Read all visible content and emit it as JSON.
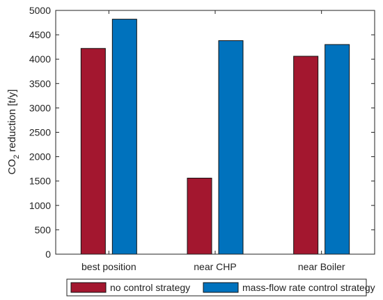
{
  "chart_data": {
    "type": "bar",
    "categories": [
      "best position",
      "near CHP",
      "near Boiler"
    ],
    "series": [
      {
        "name": "no control strategy",
        "color": "#A3172F",
        "values": [
          4220,
          1560,
          4060
        ]
      },
      {
        "name": "mass-flow rate control strategy",
        "color": "#0072BD",
        "values": [
          4820,
          4380,
          4300
        ]
      }
    ],
    "ylabel": {
      "main": "CO",
      "sub": "2",
      "rest": " reduction [t/y]"
    },
    "ylim": [
      0,
      5000
    ],
    "yticks": [
      0,
      500,
      1000,
      1500,
      2000,
      2500,
      3000,
      3500,
      4000,
      4500,
      5000
    ],
    "grid": false,
    "legend_position": "bottom"
  }
}
